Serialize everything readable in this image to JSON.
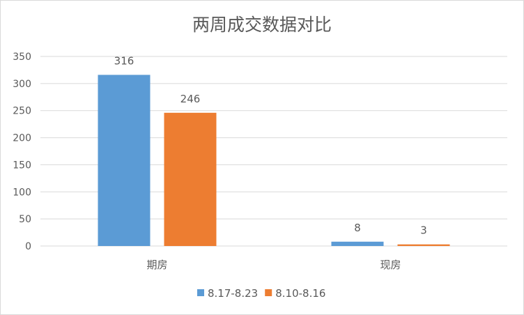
{
  "chart_data": {
    "type": "bar",
    "title": "两周成交数据对比",
    "categories": [
      "期房",
      "现房"
    ],
    "series": [
      {
        "name": "8.17-8.23",
        "values": [
          316,
          8
        ],
        "color": "#5b9bd5"
      },
      {
        "name": "8.10-8.16",
        "values": [
          246,
          3
        ],
        "color": "#ed7d31"
      }
    ],
    "ylim": [
      0,
      350
    ],
    "yticks": [
      0,
      50,
      100,
      150,
      200,
      250,
      300,
      350
    ],
    "grid": true,
    "legend": "bottom",
    "data_labels": true
  }
}
